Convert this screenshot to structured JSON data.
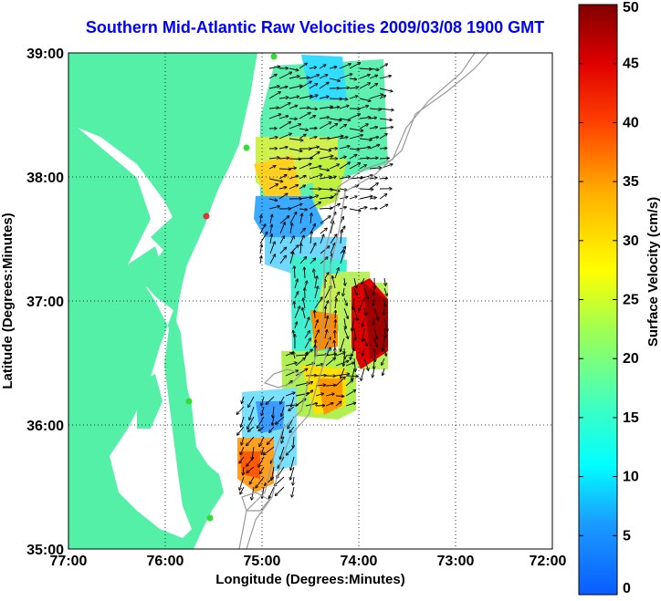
{
  "title": "Southern Mid-Atlantic Raw Velocities 2009/03/08 1900 GMT",
  "x_axis": {
    "label": "Longitude (Degrees:Minutes)",
    "ticks": [
      "77:00",
      "76:00",
      "75:00",
      "74:00",
      "73:00",
      "72:00"
    ]
  },
  "y_axis": {
    "label": "Latitude (Degrees:Minutes)",
    "ticks": [
      "39:00",
      "38:00",
      "37:00",
      "36:00",
      "35:00"
    ]
  },
  "colorbar": {
    "label": "Surface Velocity (cm/s)",
    "min": 0,
    "max": 50,
    "ticks": [
      "0",
      "5",
      "10",
      "15",
      "20",
      "25",
      "30",
      "35",
      "40",
      "45",
      "50"
    ]
  },
  "map_extent": {
    "lon": [
      -77,
      -72
    ],
    "lat": [
      35,
      39
    ]
  },
  "colors": {
    "land": "#55f0a8",
    "title": "#0000ff",
    "station": "#33dd33",
    "station_alt": "#dd3333"
  }
}
